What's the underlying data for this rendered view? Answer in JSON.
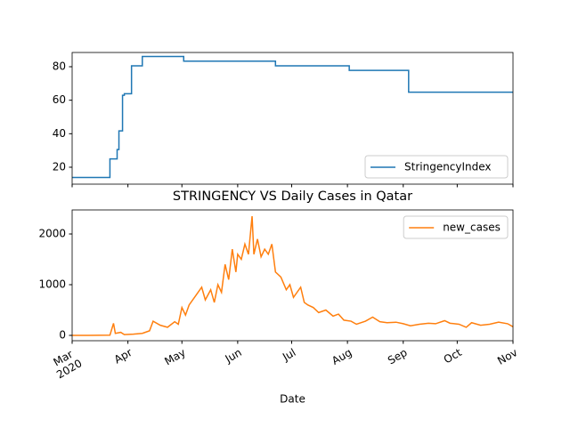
{
  "chart_data": [
    {
      "type": "line",
      "drawstyle": "steps-post",
      "legend": "lower right",
      "x": [
        0,
        21,
        23,
        25,
        26,
        27,
        28,
        29,
        33,
        39,
        62,
        113,
        154,
        187,
        245
      ],
      "series": [
        {
          "name": "StringencyIndex",
          "color": "#1f77b4",
          "values": [
            13.89,
            25,
            25,
            30.56,
            41.67,
            41.67,
            62.96,
            63.89,
            80.56,
            86.11,
            83.33,
            80.56,
            77.78,
            64.81,
            64.81
          ]
        }
      ],
      "xlim": [
        0,
        245
      ],
      "xticks": [
        0,
        31,
        61,
        92,
        122,
        153,
        184,
        214,
        245
      ],
      "ylim": [
        9.9,
        88.5
      ],
      "yticks": [
        20,
        40,
        60,
        80
      ]
    },
    {
      "type": "line",
      "title": "STRINGENCY VS Daily Cases in Qatar",
      "xlabel": "Date",
      "legend": "upper right",
      "x": [
        0,
        9,
        21,
        23,
        24,
        27,
        29,
        34,
        39,
        43,
        45,
        49,
        53,
        57,
        59,
        61,
        63,
        65,
        69,
        72,
        74,
        77,
        79,
        81,
        83,
        85,
        87,
        89,
        91,
        92,
        94,
        96,
        98,
        100,
        101,
        103,
        105,
        107,
        109,
        111,
        113,
        116,
        119,
        121,
        123,
        127,
        129,
        131,
        134,
        137,
        141,
        145,
        148,
        151,
        155,
        158,
        163,
        167,
        171,
        175,
        180,
        184,
        188,
        193,
        198,
        202,
        207,
        210,
        215,
        219,
        222,
        227,
        232,
        237,
        242,
        245
      ],
      "series": [
        {
          "name": "new_cases",
          "color": "#ff7f0e",
          "values": [
            0,
            0,
            5,
            238,
            40,
            60,
            15,
            25,
            40,
            90,
            280,
            200,
            160,
            270,
            220,
            550,
            400,
            600,
            800,
            950,
            700,
            900,
            650,
            1000,
            850,
            1400,
            1100,
            1700,
            1250,
            1600,
            1500,
            1800,
            1600,
            2350,
            1600,
            1900,
            1550,
            1700,
            1600,
            1800,
            1250,
            1150,
            900,
            1000,
            750,
            950,
            650,
            600,
            550,
            450,
            500,
            380,
            420,
            300,
            280,
            220,
            280,
            360,
            270,
            250,
            260,
            230,
            190,
            220,
            240,
            230,
            290,
            240,
            220,
            160,
            250,
            200,
            220,
            260,
            230,
            170
          ]
        }
      ],
      "xlim": [
        0,
        245
      ],
      "xticks": [
        {
          "value": 0,
          "label": "Mar\n2020"
        },
        {
          "value": 31,
          "label": "Apr"
        },
        {
          "value": 61,
          "label": "May"
        },
        {
          "value": 92,
          "label": "Jun"
        },
        {
          "value": 122,
          "label": "Jul"
        },
        {
          "value": 153,
          "label": "Aug"
        },
        {
          "value": 184,
          "label": "Sep"
        },
        {
          "value": 214,
          "label": "Oct"
        },
        {
          "value": 245,
          "label": "Nov"
        }
      ],
      "ylim": [
        -105,
        2474
      ],
      "yticks": [
        0,
        1000,
        2000
      ]
    }
  ]
}
